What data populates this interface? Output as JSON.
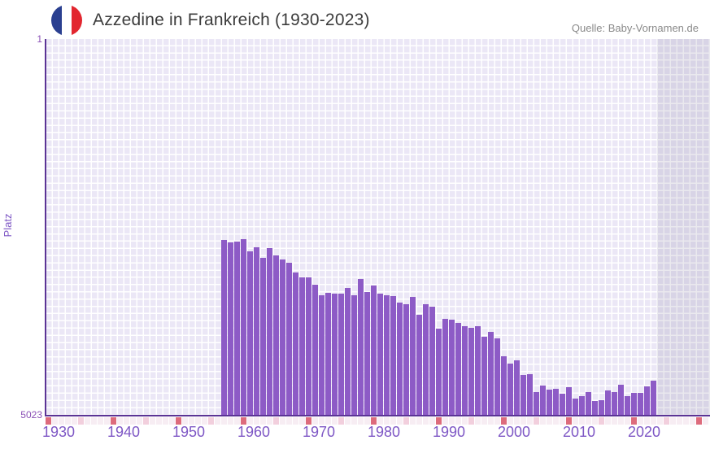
{
  "header": {
    "title": "Azzedine in Frankreich (1930-2023)",
    "source": "Quelle: Baby-Vornamen.de",
    "flag_icon": "france-flag-icon"
  },
  "axes": {
    "y_label": "Platz",
    "y_top_tick": "1",
    "y_bottom_tick": "5023",
    "x_tick_labels": [
      "1930",
      "1940",
      "1950",
      "1960",
      "1970",
      "1980",
      "1990",
      "2000",
      "2010",
      "2020"
    ]
  },
  "colors": {
    "bar": "#8d5bc6",
    "axis_line": "#5b3395",
    "grid_cell": "#ebe7f6",
    "grid_line": "#ffffff",
    "future_band": "rgba(93,82,122,0.13)",
    "tick_decade": "#dd6b7c",
    "tick_half_decade": "#f2cfdd",
    "tick_year": "#f7edf3",
    "x_label": "#7e57c5",
    "y_label": "#8a4fb5",
    "title_text": "#3c3c3c",
    "source_text": "#8a8a8a",
    "flag_blue": "#2a3f90",
    "flag_white": "#ffffff",
    "flag_red": "#e2262f"
  },
  "chart_data": {
    "type": "bar",
    "title": "Azzedine in Frankreich (1930-2023)",
    "xlabel": "",
    "ylabel": "Platz",
    "x_range": [
      1930,
      2031
    ],
    "y_axis": {
      "min": 1,
      "max": 5023,
      "inverted": true
    },
    "legend_position": "none",
    "grid": true,
    "x": [
      1957,
      1958,
      1959,
      1960,
      1961,
      1962,
      1963,
      1964,
      1965,
      1966,
      1967,
      1968,
      1969,
      1970,
      1971,
      1972,
      1973,
      1974,
      1975,
      1976,
      1977,
      1978,
      1979,
      1980,
      1981,
      1982,
      1983,
      1984,
      1985,
      1986,
      1987,
      1988,
      1989,
      1990,
      1991,
      1992,
      1993,
      1994,
      1995,
      1996,
      1997,
      1998,
      1999,
      2000,
      2001,
      2002,
      2003,
      2004,
      2005,
      2006,
      2007,
      2008,
      2009,
      2010,
      2011,
      2012,
      2013,
      2014,
      2015,
      2016,
      2017,
      2018,
      2019,
      2020,
      2021,
      2022,
      2023
    ],
    "values": [
      2683,
      2719,
      2708,
      2678,
      2841,
      2780,
      2928,
      2791,
      2889,
      2947,
      2987,
      3117,
      3183,
      3189,
      3284,
      3425,
      3396,
      3400,
      3403,
      3324,
      3425,
      3204,
      3385,
      3291,
      3403,
      3428,
      3436,
      3526,
      3548,
      3443,
      3682,
      3548,
      3574,
      3871,
      3737,
      3755,
      3792,
      3838,
      3857,
      3838,
      3979,
      3917,
      4001,
      4243,
      4334,
      4291,
      4490,
      4479,
      4715,
      4631,
      4689,
      4678,
      4743,
      4649,
      4805,
      4769,
      4721,
      4834,
      4830,
      4696,
      4721,
      4617,
      4769,
      4732,
      4726,
      4642,
      4562
    ]
  }
}
